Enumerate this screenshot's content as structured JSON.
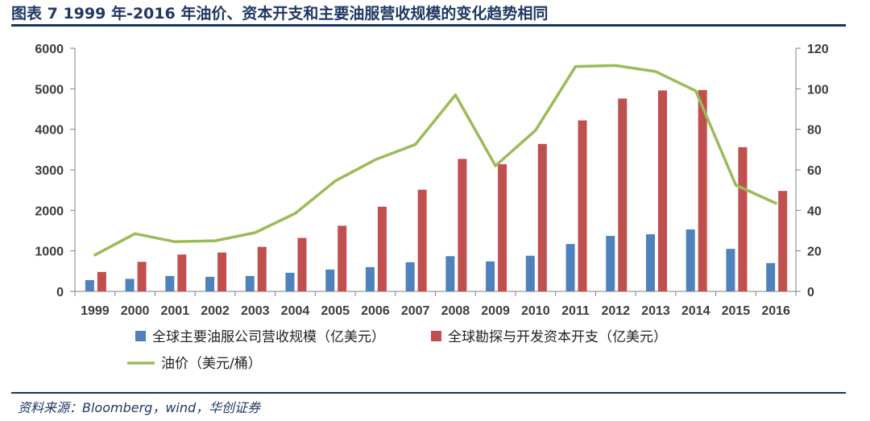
{
  "figure": {
    "title": "图表 7 1999 年-2016 年油价、资本开支和主要油服营收规模的变化趋势相同",
    "source": "资料来源：Bloomberg，wind，华创证券"
  },
  "chart_data": {
    "type": "bar+line",
    "categories": [
      "1999",
      "2000",
      "2001",
      "2002",
      "2003",
      "2004",
      "2005",
      "2006",
      "2007",
      "2008",
      "2009",
      "2010",
      "2011",
      "2012",
      "2013",
      "2014",
      "2015",
      "2016"
    ],
    "series": [
      {
        "name": "全球主要油服公司营收规模（亿美元）",
        "type": "bar",
        "axis": "left",
        "color": "#4f81bd",
        "values": [
          280,
          310,
          380,
          360,
          380,
          460,
          540,
          600,
          720,
          870,
          740,
          880,
          1170,
          1370,
          1410,
          1530,
          1050,
          700
        ]
      },
      {
        "name": "全球勘探与开发资本开支（亿美元）",
        "type": "bar",
        "axis": "left",
        "color": "#c0504d",
        "values": [
          480,
          730,
          910,
          960,
          1100,
          1320,
          1620,
          2090,
          2510,
          3270,
          3140,
          3640,
          4220,
          4760,
          4960,
          4970,
          3560,
          2480
        ]
      },
      {
        "name": "油价（美元/桶）",
        "type": "line",
        "axis": "right",
        "color": "#9bbb59",
        "values": [
          18,
          28.5,
          24.5,
          25,
          29,
          38.5,
          54.5,
          65,
          72.5,
          97,
          62,
          79.5,
          111,
          111.5,
          108.5,
          99,
          52.5,
          43.5
        ]
      }
    ],
    "y_left": {
      "min": 0,
      "max": 6000,
      "ticks": [
        0,
        1000,
        2000,
        3000,
        4000,
        5000,
        6000
      ]
    },
    "y_right": {
      "min": 0,
      "max": 120,
      "ticks": [
        0,
        20,
        40,
        60,
        80,
        100,
        120
      ]
    },
    "legend_position": "bottom",
    "grid": false
  }
}
